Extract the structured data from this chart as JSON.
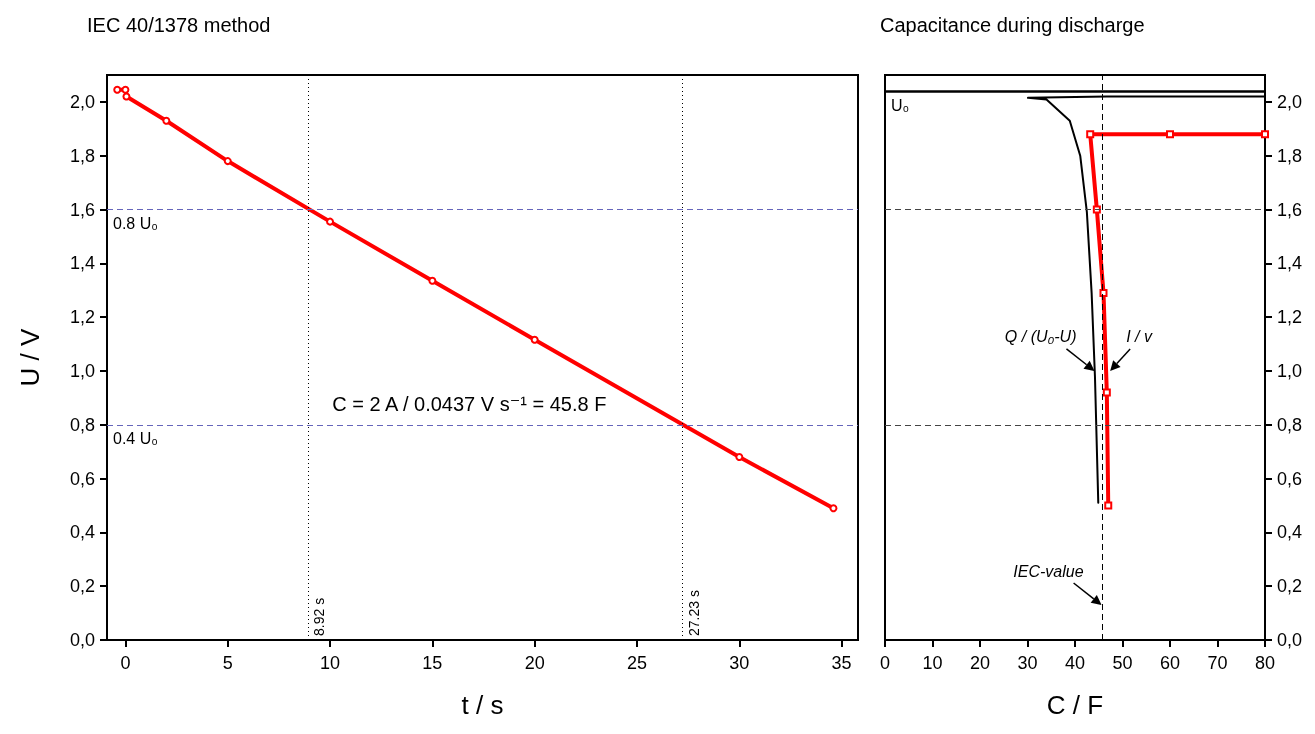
{
  "chart_data": [
    {
      "type": "line",
      "title": "IEC 40/1378 method",
      "xlabel": "t / s",
      "ylabel": "U / V",
      "marker": "circle",
      "xlim": [
        -0.9,
        35.8
      ],
      "xticks": [
        0,
        5,
        10,
        15,
        20,
        25,
        30,
        35
      ],
      "ylim": [
        0,
        2.1
      ],
      "yticks": [
        {
          "value": 0,
          "label": "0,0"
        },
        {
          "value": 0.2,
          "label": "0,2"
        },
        {
          "value": 0.4,
          "label": "0,4"
        },
        {
          "value": 0.6,
          "label": "0,6"
        },
        {
          "value": 0.8,
          "label": "0,8"
        },
        {
          "value": 1.0,
          "label": "1,0"
        },
        {
          "value": 1.2,
          "label": "1,2"
        },
        {
          "value": 1.4,
          "label": "1,4"
        },
        {
          "value": 1.6,
          "label": "1,6"
        },
        {
          "value": 1.8,
          "label": "1,8"
        },
        {
          "value": 2.0,
          "label": "2,0"
        }
      ],
      "series": [
        {
          "color": "#ff0000",
          "x": [
            -0.4,
            0.0,
            0.05,
            2,
            5,
            10,
            15,
            20,
            30,
            34.6
          ],
          "values": [
            2.045,
            2.045,
            2.02,
            1.93,
            1.78,
            1.555,
            1.335,
            1.116,
            0.68,
            0.49
          ]
        }
      ],
      "ref_lines": [
        {
          "axis": "y",
          "value": 1.6,
          "label": "0.8 U₀",
          "color": "#6666bb",
          "line_style": "dashed"
        },
        {
          "axis": "y",
          "value": 0.8,
          "label": "0.4 U₀",
          "color": "#6666bb",
          "line_style": "dashed"
        },
        {
          "axis": "x",
          "value": 8.92,
          "label": "8.92 s",
          "color": "#000000",
          "line_style": "dotted"
        },
        {
          "axis": "x",
          "value": 27.23,
          "label": "27.23 s",
          "color": "#000000",
          "line_style": "dotted"
        }
      ],
      "annotations": [
        "C = 2 A / 0.0437 V s⁻¹ = 45.8 F"
      ]
    },
    {
      "type": "line",
      "title": "Capacitance during discharge",
      "xlabel": "C / F",
      "marker": "none",
      "xlim": [
        0,
        80
      ],
      "xticks": [
        0,
        10,
        20,
        30,
        40,
        50,
        60,
        70,
        80
      ],
      "ylim": [
        0,
        2.1
      ],
      "yticks": [
        {
          "value": 0,
          "label": "0,0"
        },
        {
          "value": 0.2,
          "label": "0,2"
        },
        {
          "value": 0.4,
          "label": "0,4"
        },
        {
          "value": 0.6,
          "label": "0,6"
        },
        {
          "value": 0.8,
          "label": "0,8"
        },
        {
          "value": 1.0,
          "label": "1,0"
        },
        {
          "value": 1.2,
          "label": "1,2"
        },
        {
          "value": 1.4,
          "label": "1,4"
        },
        {
          "value": 1.6,
          "label": "1,6"
        },
        {
          "value": 1.8,
          "label": "1,8"
        },
        {
          "value": 2.0,
          "label": "2,0"
        }
      ],
      "series": [
        {
          "color": "#000000",
          "x": [
            80,
            46.7,
            30.1,
            34.0,
            38.9,
            41.1,
            42.5,
            43.5,
            44.2,
            44.9
          ],
          "values": [
            2.02,
            2.02,
            2.015,
            2.009,
            1.93,
            1.8,
            1.59,
            1.29,
            0.98,
            0.51
          ]
        },
        {
          "color": "#ff0000",
          "marker": "square",
          "x": [
            80,
            60,
            43.2,
            44.6,
            46.0,
            46.7,
            47.0
          ],
          "values": [
            1.88,
            1.88,
            1.88,
            1.6,
            1.29,
            0.92,
            0.5
          ]
        }
      ],
      "ref_lines": [
        {
          "axis": "y",
          "value": 2.04,
          "label": "U₀",
          "color": "#000000",
          "line_style": "solid"
        },
        {
          "axis": "y",
          "value": 1.6,
          "label": null,
          "color": "#444444",
          "line_style": "dashed"
        },
        {
          "axis": "y",
          "value": 0.8,
          "label": null,
          "color": "#444444",
          "line_style": "dashed"
        },
        {
          "axis": "x",
          "value": 45.8,
          "label": null,
          "color": "#000000",
          "line_style": "dashed"
        }
      ],
      "annotations": [
        {
          "text": "Q / (U₀-U)",
          "x": 44.1,
          "y": 1.0
        },
        {
          "text": "I / v",
          "x": 47.4,
          "y": 1.0
        },
        {
          "text": "IEC-value",
          "x": 45.6,
          "y": 0.13
        }
      ]
    }
  ]
}
